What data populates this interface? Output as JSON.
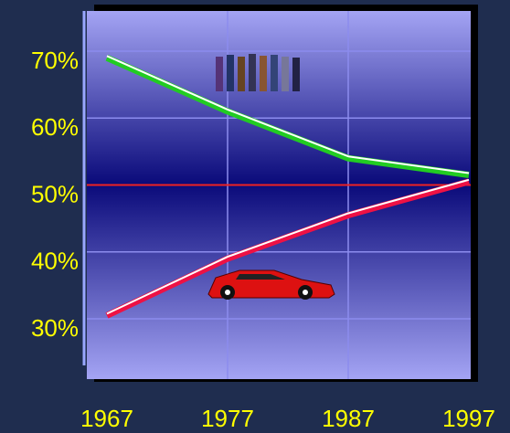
{
  "chart_data": {
    "type": "line",
    "x": [
      1967,
      1977,
      1987,
      1997
    ],
    "xlim": [
      1967,
      1997
    ],
    "xticks": [
      1967,
      1977,
      1987,
      1997
    ],
    "ylim": [
      21,
      76
    ],
    "yticks": [
      {
        "value": 70,
        "label": "70%"
      },
      {
        "value": 60,
        "label": "60%"
      },
      {
        "value": 50,
        "label": "50%"
      },
      {
        "value": 40,
        "label": "40%"
      },
      {
        "value": 30,
        "label": "30%"
      }
    ],
    "reference_line": {
      "value": 50,
      "color": "#ee2222"
    },
    "grid": true,
    "series": [
      {
        "color": "#22cc22",
        "values": [
          69,
          61,
          54,
          51.5
        ]
      },
      {
        "color": "#ee1144",
        "values": [
          30.5,
          39,
          45.5,
          50.5
        ]
      }
    ]
  }
}
